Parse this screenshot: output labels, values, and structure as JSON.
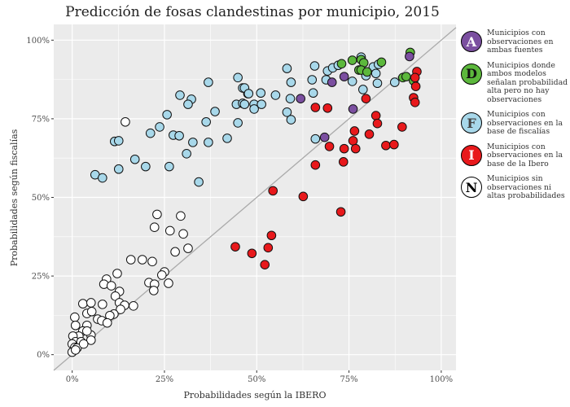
{
  "chart_data": {
    "type": "scatter",
    "title": "Predicción de fosas clandestinas por municipio, 2015",
    "xlabel": "Probabilidades según la IBERO",
    "ylabel": "Probabilidades según fiscalías",
    "xlim": [
      -5,
      104
    ],
    "ylim": [
      -5,
      105
    ],
    "xticks": [
      "0%",
      "25%",
      "50%",
      "75%",
      "100%"
    ],
    "yticks": [
      "0%",
      "25%",
      "50%",
      "75%",
      "100%"
    ],
    "xtick_values": [
      0,
      25,
      50,
      75,
      100
    ],
    "ytick_values": [
      0,
      25,
      50,
      75,
      100
    ],
    "grid": true,
    "reference_line": "y = x",
    "legend_position": "right",
    "series": [
      {
        "key": "A",
        "name": "Municipios con observaciones en ambas fuentes",
        "color": "#7b4fa0",
        "letter_color": "#ffffff",
        "points": [
          [
            61.9,
            81.4
          ],
          [
            70.4,
            86.6
          ],
          [
            73.7,
            88.4
          ],
          [
            76.1,
            78.1
          ],
          [
            68.4,
            69.1
          ],
          [
            91.4,
            94.8
          ]
        ]
      },
      {
        "key": "D",
        "name": "Municipios donde ambos modelos señalan probabilidad alta pero no hay observaciones",
        "color": "#5cb83c",
        "letter_color": "#111111",
        "points": [
          [
            73.0,
            92.5
          ],
          [
            75.9,
            93.6
          ],
          [
            78.3,
            93.8
          ],
          [
            79.0,
            92.8
          ],
          [
            77.7,
            90.5
          ],
          [
            78.3,
            90.5
          ],
          [
            79.9,
            89.9
          ],
          [
            83.8,
            93.0
          ],
          [
            89.6,
            88.1
          ],
          [
            90.5,
            88.4
          ],
          [
            91.6,
            96.1
          ],
          [
            92.5,
            87.1
          ]
        ]
      },
      {
        "key": "F",
        "name": "Municipios con observaciones en la base de fiscalías",
        "color": "#a8d8ea",
        "letter_color": "#444444",
        "points": [
          [
            6.2,
            57.2
          ],
          [
            8.2,
            56.2
          ],
          [
            12.6,
            59.0
          ],
          [
            17.0,
            62.1
          ],
          [
            19.9,
            59.8
          ],
          [
            26.3,
            59.8
          ],
          [
            34.3,
            54.9
          ],
          [
            31.0,
            63.9
          ],
          [
            32.7,
            67.5
          ],
          [
            36.9,
            67.5
          ],
          [
            42.0,
            68.8
          ],
          [
            44.9,
            73.7
          ],
          [
            36.3,
            74.0
          ],
          [
            38.7,
            77.3
          ],
          [
            36.9,
            86.6
          ],
          [
            44.9,
            88.1
          ],
          [
            46.2,
            84.8
          ],
          [
            47.6,
            83.0
          ],
          [
            44.5,
            79.6
          ],
          [
            46.2,
            79.9
          ],
          [
            29.2,
            82.5
          ],
          [
            32.3,
            81.2
          ],
          [
            31.4,
            79.6
          ],
          [
            25.7,
            76.3
          ],
          [
            23.7,
            72.4
          ],
          [
            21.2,
            70.4
          ],
          [
            27.4,
            69.8
          ],
          [
            29.0,
            69.6
          ],
          [
            11.5,
            67.8
          ],
          [
            12.6,
            68.0
          ],
          [
            46.7,
            84.8
          ],
          [
            47.8,
            83.0
          ],
          [
            46.7,
            79.6
          ],
          [
            49.3,
            79.6
          ],
          [
            49.3,
            78.1
          ],
          [
            51.3,
            79.6
          ],
          [
            51.1,
            83.2
          ],
          [
            55.1,
            82.5
          ],
          [
            59.1,
            81.4
          ],
          [
            58.2,
            91.0
          ],
          [
            59.3,
            86.6
          ],
          [
            58.2,
            77.1
          ],
          [
            59.3,
            74.7
          ],
          [
            65.0,
            87.4
          ],
          [
            65.3,
            83.2
          ],
          [
            65.7,
            91.8
          ],
          [
            68.8,
            87.4
          ],
          [
            69.2,
            90.2
          ],
          [
            70.6,
            91.2
          ],
          [
            72.1,
            92.0
          ],
          [
            75.9,
            86.9
          ],
          [
            78.3,
            94.6
          ],
          [
            78.8,
            84.3
          ],
          [
            79.6,
            88.7
          ],
          [
            81.6,
            91.5
          ],
          [
            82.3,
            89.4
          ],
          [
            83.0,
            92.3
          ],
          [
            82.7,
            86.3
          ],
          [
            87.4,
            86.6
          ],
          [
            65.9,
            68.6
          ]
        ]
      },
      {
        "key": "I",
        "name": "Municipios con observaciones en la base de la Ibero",
        "color": "#e8191c",
        "letter_color": "#ffffff",
        "points": [
          [
            79.6,
            81.4
          ],
          [
            65.9,
            78.6
          ],
          [
            69.2,
            78.4
          ],
          [
            82.3,
            76.0
          ],
          [
            82.7,
            73.5
          ],
          [
            89.4,
            72.4
          ],
          [
            76.5,
            71.1
          ],
          [
            80.5,
            70.1
          ],
          [
            76.1,
            68.0
          ],
          [
            76.8,
            65.5
          ],
          [
            73.7,
            65.5
          ],
          [
            69.7,
            66.2
          ],
          [
            85.0,
            66.5
          ],
          [
            87.2,
            66.8
          ],
          [
            73.5,
            61.3
          ],
          [
            65.9,
            60.3
          ],
          [
            54.4,
            52.1
          ],
          [
            62.6,
            50.3
          ],
          [
            93.4,
            90.0
          ],
          [
            92.9,
            88.1
          ],
          [
            93.1,
            85.3
          ],
          [
            92.5,
            81.7
          ],
          [
            92.9,
            80.2
          ],
          [
            54.0,
            37.9
          ],
          [
            44.2,
            34.3
          ],
          [
            48.7,
            32.2
          ],
          [
            53.1,
            34.0
          ],
          [
            52.2,
            28.6
          ],
          [
            72.8,
            45.4
          ]
        ]
      },
      {
        "key": "N",
        "name": "Municipios sin observaciones ni altas probabilidades",
        "color": "#ffffff",
        "letter_color": "#000000",
        "points": [
          [
            14.4,
            74.0
          ],
          [
            23.0,
            44.6
          ],
          [
            29.4,
            44.1
          ],
          [
            22.3,
            40.5
          ],
          [
            26.5,
            39.4
          ],
          [
            30.1,
            38.4
          ],
          [
            31.4,
            33.8
          ],
          [
            27.9,
            32.7
          ],
          [
            15.9,
            30.2
          ],
          [
            19.0,
            30.2
          ],
          [
            21.7,
            29.6
          ],
          [
            12.2,
            25.8
          ],
          [
            25.0,
            26.3
          ],
          [
            24.3,
            25.3
          ],
          [
            9.3,
            24.0
          ],
          [
            8.6,
            22.4
          ],
          [
            10.6,
            21.9
          ],
          [
            20.8,
            22.9
          ],
          [
            22.3,
            22.4
          ],
          [
            26.1,
            22.7
          ],
          [
            12.8,
            20.1
          ],
          [
            22.1,
            20.4
          ],
          [
            11.7,
            18.6
          ],
          [
            12.8,
            16.5
          ],
          [
            2.9,
            16.2
          ],
          [
            5.1,
            16.5
          ],
          [
            8.2,
            16.0
          ],
          [
            14.2,
            15.7
          ],
          [
            16.6,
            15.5
          ],
          [
            13.1,
            14.4
          ],
          [
            11.3,
            12.9
          ],
          [
            10.2,
            12.4
          ],
          [
            0.7,
            11.9
          ],
          [
            4.0,
            13.1
          ],
          [
            5.3,
            13.7
          ],
          [
            6.9,
            11.3
          ],
          [
            8.0,
            10.8
          ],
          [
            9.5,
            10.1
          ],
          [
            4.0,
            9.3
          ],
          [
            0.9,
            9.3
          ],
          [
            2.9,
            7.5
          ],
          [
            5.1,
            6.2
          ],
          [
            1.8,
            5.9
          ],
          [
            5.1,
            4.6
          ],
          [
            0.2,
            5.9
          ],
          [
            0.9,
            4.1
          ],
          [
            2.4,
            4.1
          ],
          [
            0,
            3.4
          ],
          [
            0.7,
            2.3
          ],
          [
            1.3,
            2.1
          ],
          [
            0,
            0.8
          ],
          [
            0.9,
            1.5
          ],
          [
            3.1,
            3.4
          ],
          [
            4.0,
            7.5
          ]
        ]
      }
    ]
  }
}
